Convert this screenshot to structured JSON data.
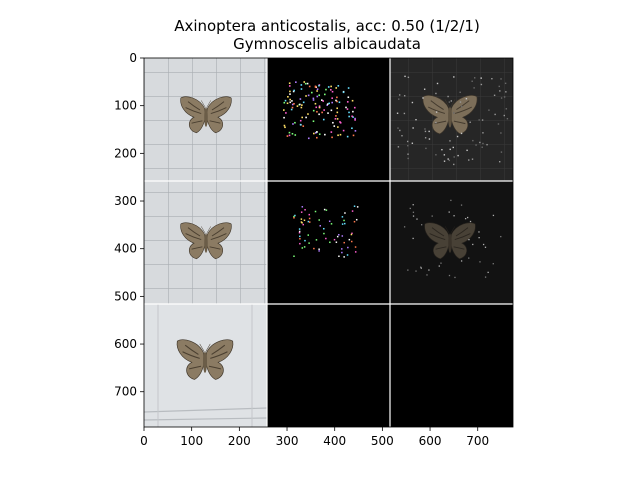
{
  "chart_data": {
    "type": "image-grid",
    "title": "Axinoptera anticostalis, acc: 0.50 (1/2/1)",
    "subtitle": "Gymnoscelis albicaudata",
    "xlim": [
      0,
      774
    ],
    "ylim": [
      774,
      0
    ],
    "x_ticks": [
      0,
      100,
      200,
      300,
      400,
      500,
      600,
      700
    ],
    "y_ticks": [
      0,
      100,
      200,
      300,
      400,
      500,
      600,
      700
    ],
    "grid": {
      "rows": 3,
      "cols": 3,
      "tile_size": 258
    },
    "tiles": [
      {
        "row": 0,
        "col": 0,
        "kind": "photo",
        "description": "moth specimen on grid paper"
      },
      {
        "row": 0,
        "col": 1,
        "kind": "saliency-dots",
        "description": "sparse colored attribution map"
      },
      {
        "row": 0,
        "col": 2,
        "kind": "masked-photo",
        "description": "moth revealed on dark background"
      },
      {
        "row": 1,
        "col": 0,
        "kind": "photo",
        "description": "moth specimen on grid paper"
      },
      {
        "row": 1,
        "col": 1,
        "kind": "saliency-dots",
        "description": "sparse attribution map"
      },
      {
        "row": 1,
        "col": 2,
        "kind": "masked-photo",
        "description": "dim moth on dark background"
      },
      {
        "row": 2,
        "col": 0,
        "kind": "photo",
        "description": "moth specimen on white paper"
      },
      {
        "row": 2,
        "col": 1,
        "kind": "blank",
        "description": "black"
      },
      {
        "row": 2,
        "col": 2,
        "kind": "blank",
        "description": "black"
      }
    ],
    "colors": {
      "background": "#ffffff",
      "blank_tile": "#000000",
      "separator": "#ffffff",
      "paper": "#d4d8dc",
      "moth": "#8a7a62"
    }
  }
}
